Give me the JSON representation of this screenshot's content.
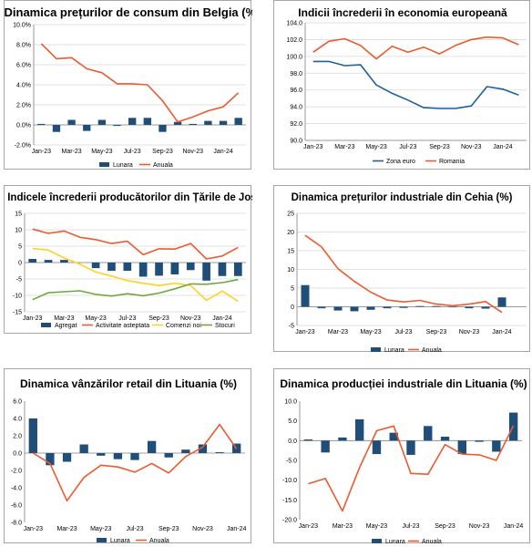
{
  "colors": {
    "bar": "#1f4e79",
    "orange": "#ed5a2f",
    "blue_line": "#1f5f9e",
    "yellow": "#ffd21f",
    "green": "#70a83c",
    "grid": "#d9d9d9"
  },
  "chart_data": [
    {
      "type": "bar",
      "title": "Dinamica prețurilor de consum din Belgia (%)",
      "categories": [
        "Jan-23",
        "Feb-23",
        "Mar-23",
        "Apr-23",
        "May-23",
        "Jun-23",
        "Jul-23",
        "Aug-23",
        "Sep-23",
        "Oct-23",
        "Nov-23",
        "Dec-23",
        "Jan-24",
        "Feb-24"
      ],
      "xtick_labels": [
        "Jan-23",
        "Mar-23",
        "May-23",
        "Jul-23",
        "Sep-23",
        "Nov-23",
        "Jan-24"
      ],
      "ytick_labels": [
        "-2.0%",
        "0.0%",
        "2.0%",
        "4.0%",
        "6.0%",
        "8.0%",
        "10.0%"
      ],
      "ylim": [
        -2,
        10
      ],
      "series": [
        {
          "name": "Lunara",
          "kind": "bar",
          "values": [
            0.1,
            -0.7,
            0.5,
            -0.6,
            0.5,
            -0.1,
            0.7,
            0.7,
            -0.7,
            0.3,
            0.1,
            0.4,
            0.4,
            0.7
          ]
        },
        {
          "name": "Anuala",
          "kind": "line",
          "values": [
            8.1,
            6.6,
            6.7,
            5.6,
            5.2,
            4.1,
            4.1,
            4.0,
            2.4,
            0.3,
            0.8,
            1.4,
            1.8,
            3.2
          ]
        }
      ]
    },
    {
      "type": "line",
      "title": "Indicii încrederii în economia europeană",
      "categories": [
        "Jan-23",
        "Feb-23",
        "Mar-23",
        "Apr-23",
        "May-23",
        "Jun-23",
        "Jul-23",
        "Aug-23",
        "Sep-23",
        "Oct-23",
        "Nov-23",
        "Dec-23",
        "Jan-24",
        "Feb-24"
      ],
      "xtick_labels": [
        "Jan-23",
        "Mar-23",
        "May-23",
        "Jul-23",
        "Sep-23",
        "Nov-23",
        "Jan-24"
      ],
      "ytick_labels": [
        "90.0",
        "92.0",
        "94.0",
        "96.0",
        "98.0",
        "100.0",
        "102.0",
        "104.0"
      ],
      "ylim": [
        90,
        104
      ],
      "series": [
        {
          "name": "Zona euro",
          "kind": "line",
          "values": [
            99.4,
            99.4,
            98.9,
            99.0,
            96.6,
            95.6,
            94.8,
            93.9,
            93.8,
            93.8,
            94.1,
            96.4,
            96.1,
            95.4
          ]
        },
        {
          "name": "Romania",
          "kind": "line",
          "values": [
            100.5,
            101.8,
            102.1,
            101.3,
            99.7,
            101.2,
            100.5,
            101.1,
            100.3,
            101.3,
            102.0,
            102.3,
            102.2,
            101.4
          ]
        }
      ]
    },
    {
      "type": "bar",
      "title": "Indicele încrederii producătorilor din Țările de Jos",
      "categories": [
        "Jan-23",
        "Feb-23",
        "Mar-23",
        "Apr-23",
        "May-23",
        "Jun-23",
        "Jul-23",
        "Aug-23",
        "Sep-23",
        "Oct-23",
        "Nov-23",
        "Dec-23",
        "Jan-24",
        "Feb-24"
      ],
      "xtick_labels": [
        "Jan-23",
        "Mar-23",
        "May-23",
        "Jul-23",
        "Sep-23",
        "Nov-23",
        "Jan-24"
      ],
      "ytick_labels": [
        "-15",
        "-10",
        "-5",
        "0",
        "5",
        "10",
        "15"
      ],
      "ylim": [
        -15,
        15
      ],
      "series": [
        {
          "name": "Agregat",
          "kind": "bar",
          "values": [
            1.1,
            0.8,
            0.8,
            0.0,
            -1.7,
            -2.5,
            -2.5,
            -4.3,
            -4.0,
            -3.6,
            -2.3,
            -5.5,
            -4.1,
            -4.1
          ]
        },
        {
          "name": "Activitate asteptata",
          "kind": "line",
          "values": [
            10.2,
            8.9,
            9.6,
            7.7,
            7.0,
            5.8,
            6.5,
            2.4,
            4.2,
            4.1,
            5.8,
            1.1,
            2.0,
            4.6
          ]
        },
        {
          "name": "Comenzi noi",
          "kind": "line",
          "values": [
            4.3,
            3.8,
            1.4,
            -0.5,
            -2.9,
            -4.1,
            -5.5,
            -6.3,
            -7.0,
            -6.3,
            -7.0,
            -11.5,
            -8.7,
            -11.8
          ]
        },
        {
          "name": "Stocuri",
          "kind": "line",
          "values": [
            -11.3,
            -9.2,
            -8.9,
            -8.6,
            -9.7,
            -10.2,
            -9.5,
            -10.1,
            -9.3,
            -8.0,
            -6.5,
            -6.6,
            -6.1,
            -5.2
          ]
        }
      ]
    },
    {
      "type": "bar",
      "title": "Dinamica prețurilor industriale din Cehia (%)",
      "categories": [
        "Jan-23",
        "Feb-23",
        "Mar-23",
        "Apr-23",
        "May-23",
        "Jun-23",
        "Jul-23",
        "Aug-23",
        "Sep-23",
        "Oct-23",
        "Nov-23",
        "Dec-23",
        "Jan-24",
        "Feb-24"
      ],
      "xtick_labels": [
        "Jan-23",
        "Mar-23",
        "May-23",
        "Jul-23",
        "Sep-23",
        "Nov-23",
        "Jan-24"
      ],
      "ytick_labels": [
        "-5",
        "0",
        "5",
        "10",
        "15",
        "20",
        "25"
      ],
      "ylim": [
        -5,
        25
      ],
      "series": [
        {
          "name": "Lunara",
          "kind": "bar",
          "values": [
            5.8,
            -0.4,
            -1.0,
            -1.2,
            -0.8,
            -0.4,
            -0.3,
            0.2,
            0.2,
            -0.1,
            -0.4,
            -0.5,
            2.5,
            0
          ]
        },
        {
          "name": "Anuala",
          "kind": "line",
          "values": [
            19.1,
            16.0,
            10.2,
            6.8,
            3.9,
            1.8,
            1.3,
            1.7,
            0.7,
            0.3,
            0.7,
            1.4,
            -1.5,
            null
          ]
        }
      ]
    },
    {
      "type": "bar",
      "title": "Dinamica vânzărilor retail din Lituania (%)",
      "categories": [
        "Jan-23",
        "Feb-23",
        "Mar-23",
        "Apr-23",
        "May-23",
        "Jun-23",
        "Jul-23",
        "Aug-23",
        "Sep-23",
        "Oct-23",
        "Nov-23",
        "Dec-23",
        "Jan-24"
      ],
      "xtick_labels": [
        "Jan-23",
        "Mar-23",
        "May-23",
        "Jul-23",
        "Sep-23",
        "Nov-23",
        "Jan-24"
      ],
      "ytick_labels": [
        "-8.0",
        "-6.0",
        "-4.0",
        "-2.0",
        "0.0",
        "2.0",
        "4.0",
        "6.0"
      ],
      "ylim": [
        -8,
        6
      ],
      "series": [
        {
          "name": "Lunara",
          "kind": "bar",
          "values": [
            4.0,
            -1.4,
            -1.0,
            1.0,
            -0.3,
            -0.7,
            -0.8,
            1.4,
            -0.5,
            0.4,
            1.0,
            0.1,
            1.1
          ]
        },
        {
          "name": "Anuala",
          "kind": "line",
          "values": [
            0.0,
            -1.2,
            -5.5,
            -2.8,
            -1.4,
            -1.6,
            -2.2,
            -1.2,
            -2.3,
            -0.4,
            0.7,
            3.3,
            0.5
          ]
        }
      ]
    },
    {
      "type": "bar",
      "title": "Dinamica producției industriale din Lituania (%)",
      "categories": [
        "Jan-23",
        "Feb-23",
        "Mar-23",
        "Apr-23",
        "May-23",
        "Jun-23",
        "Jul-23",
        "Aug-23",
        "Sep-23",
        "Oct-23",
        "Nov-23",
        "Dec-23",
        "Jan-24"
      ],
      "xtick_labels": [
        "Jan-23",
        "Mar-23",
        "May-23",
        "Jul-23",
        "Sep-23",
        "Nov-23",
        "Jan-24"
      ],
      "ytick_labels": [
        "-20.0",
        "-15.0",
        "-10.0",
        "-5.0",
        "0.0",
        "5.0",
        "10.0"
      ],
      "ylim": [
        -20,
        10
      ],
      "series": [
        {
          "name": "Lunara",
          "kind": "bar",
          "values": [
            0.3,
            -3.0,
            0.8,
            5.4,
            -3.4,
            2.0,
            -3.6,
            3.7,
            1.0,
            -3.4,
            -0.3,
            -2.8,
            7.1
          ]
        },
        {
          "name": "Anuala",
          "kind": "line",
          "values": [
            -10.9,
            -9.6,
            -17.8,
            -6.8,
            2.5,
            3.7,
            -8.3,
            -8.5,
            -1.0,
            -3.4,
            -3.6,
            -5.0,
            3.8
          ]
        }
      ]
    }
  ]
}
